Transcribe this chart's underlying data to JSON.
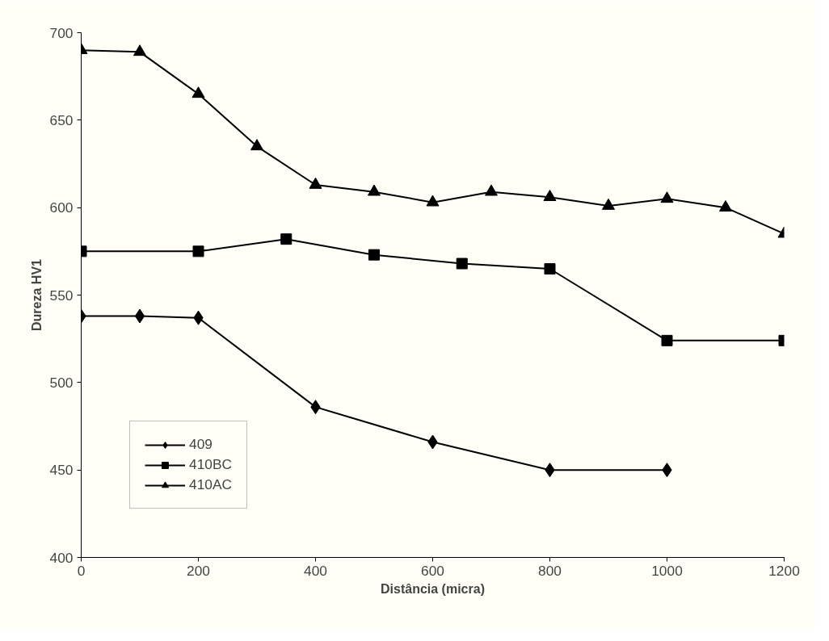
{
  "chart_data": {
    "type": "line",
    "xlabel": "Distância (micra)",
    "ylabel": "Dureza HV1",
    "xlim": [
      0,
      1200
    ],
    "xticks": [
      0,
      200,
      400,
      600,
      800,
      1000,
      1200
    ],
    "ylim": [
      400,
      700
    ],
    "yticks": [
      400,
      450,
      500,
      550,
      600,
      650,
      700
    ],
    "grid": false,
    "legend": "bottom left",
    "line_style": "solid",
    "series": [
      {
        "name": "409",
        "color": "#000000",
        "marker": "diamond",
        "x": [
          0,
          100,
          200,
          400,
          600,
          800,
          1000
        ],
        "values": [
          538,
          538,
          537,
          486,
          466,
          450,
          450
        ]
      },
      {
        "name": "410BC",
        "color": "#000000",
        "marker": "square",
        "x": [
          0,
          200,
          350,
          500,
          650,
          800,
          1000,
          1200
        ],
        "values": [
          575,
          575,
          582,
          573,
          568,
          565,
          524,
          524
        ]
      },
      {
        "name": "410AC",
        "color": "#000000",
        "marker": "triangle",
        "x": [
          0,
          100,
          200,
          300,
          400,
          500,
          600,
          700,
          800,
          900,
          1000,
          1100,
          1200
        ],
        "values": [
          690,
          689,
          665,
          635,
          613,
          609,
          603,
          609,
          606,
          601,
          605,
          600,
          585
        ]
      }
    ]
  }
}
